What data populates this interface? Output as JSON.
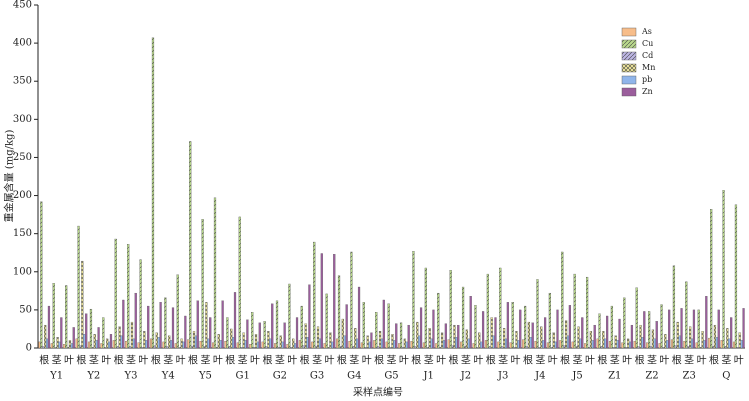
{
  "chart_data": {
    "type": "bar",
    "x_label": "采样点编号",
    "y_label": "重金属含量 (mg/kg)",
    "groups": [
      "Y1",
      "Y2",
      "Y3",
      "Y4",
      "Y5",
      "G1",
      "G2",
      "G3",
      "G4",
      "G5",
      "J1",
      "J2",
      "J3",
      "J4",
      "J5",
      "Z1",
      "Z2",
      "Z3",
      "Q"
    ],
    "categories": [
      "根",
      "茎",
      "叶",
      "根",
      "茎",
      "叶",
      "根",
      "茎",
      "叶",
      "根",
      "茎",
      "叶",
      "根",
      "茎",
      "叶",
      "根",
      "茎",
      "叶",
      "根",
      "茎",
      "叶",
      "根",
      "茎",
      "叶",
      "根",
      "茎",
      "叶",
      "根",
      "茎",
      "叶",
      "根",
      "茎",
      "叶",
      "根",
      "茎",
      "叶",
      "根",
      "茎",
      "叶",
      "根",
      "茎",
      "叶",
      "根",
      "茎",
      "叶",
      "根",
      "茎",
      "叶",
      "根",
      "茎",
      "叶",
      "根",
      "茎",
      "叶",
      "根",
      "茎",
      "叶"
    ],
    "ylim": [
      0,
      450
    ],
    "yticks": [
      0,
      50,
      100,
      150,
      200,
      250,
      300,
      350,
      400,
      450
    ],
    "legend_position": "upper right",
    "series": [
      {
        "name": "As",
        "color": "#f7bd8a",
        "pattern": "none",
        "values": [
          8,
          6,
          5,
          12,
          8,
          6,
          10,
          9,
          7,
          12,
          8,
          6,
          11,
          9,
          7,
          9,
          7,
          5,
          8,
          6,
          5,
          10,
          8,
          6,
          12,
          9,
          7,
          10,
          8,
          6,
          9,
          7,
          6,
          11,
          8,
          6,
          10,
          8,
          7,
          11,
          9,
          7,
          10,
          8,
          6,
          12,
          9,
          7,
          9,
          7,
          6,
          11,
          9,
          7,
          13,
          10,
          8
        ]
      },
      {
        "name": "Cu",
        "color": "#b9d98c",
        "pattern": "diagonal",
        "values": [
          192,
          85,
          82,
          160,
          51,
          40,
          143,
          136,
          116,
          407,
          66,
          96,
          271,
          169,
          197,
          40,
          172,
          47,
          35,
          62,
          84,
          55,
          139,
          71,
          95,
          126,
          60,
          47,
          58,
          33,
          127,
          105,
          72,
          102,
          80,
          56,
          97,
          105,
          60,
          55,
          90,
          72,
          126,
          97,
          93,
          45,
          55,
          66,
          79,
          48,
          57,
          108,
          87,
          50,
          182,
          207,
          188
        ]
      },
      {
        "name": "Cd",
        "color": "#bcb5e3",
        "pattern": "diagonal",
        "values": [
          2,
          1,
          1,
          3,
          1,
          1,
          2,
          2,
          1,
          3,
          2,
          1,
          2,
          2,
          1,
          2,
          1,
          1,
          2,
          1,
          1,
          3,
          2,
          1,
          2,
          2,
          1,
          2,
          1,
          1,
          2,
          1,
          1,
          3,
          2,
          1,
          2,
          2,
          1,
          2,
          1,
          1,
          3,
          2,
          1,
          2,
          1,
          1,
          2,
          2,
          1,
          3,
          2,
          1,
          2,
          2,
          1
        ]
      },
      {
        "name": "Mn",
        "color": "#f3ea9c",
        "pattern": "cross",
        "values": [
          30,
          14,
          10,
          114,
          18,
          12,
          28,
          34,
          22,
          20,
          16,
          12,
          22,
          60,
          18,
          25,
          20,
          18,
          22,
          16,
          12,
          32,
          28,
          20,
          38,
          26,
          16,
          22,
          18,
          12,
          34,
          26,
          20,
          30,
          24,
          20,
          40,
          26,
          22,
          34,
          28,
          20,
          36,
          28,
          22,
          22,
          16,
          12,
          30,
          24,
          18,
          34,
          28,
          22,
          30,
          26,
          20
        ]
      },
      {
        "name": "pb",
        "color": "#90b5ea",
        "pattern": "none",
        "values": [
          12,
          8,
          6,
          18,
          10,
          8,
          16,
          12,
          10,
          14,
          10,
          8,
          16,
          12,
          10,
          14,
          10,
          8,
          12,
          8,
          6,
          14,
          12,
          8,
          16,
          12,
          8,
          12,
          10,
          8,
          16,
          12,
          10,
          14,
          12,
          8,
          16,
          12,
          10,
          14,
          10,
          8,
          16,
          12,
          10,
          12,
          10,
          8,
          14,
          12,
          10,
          16,
          12,
          10,
          14,
          12,
          10
        ]
      },
      {
        "name": "Zn",
        "color": "#9b5e9c",
        "pattern": "none",
        "values": [
          55,
          40,
          27,
          45,
          27,
          18,
          63,
          72,
          55,
          60,
          53,
          42,
          62,
          40,
          62,
          73,
          37,
          33,
          58,
          33,
          40,
          83,
          124,
          123,
          57,
          80,
          20,
          63,
          32,
          30,
          53,
          50,
          32,
          30,
          68,
          48,
          40,
          60,
          50,
          33,
          40,
          50,
          56,
          40,
          30,
          42,
          38,
          30,
          48,
          35,
          50,
          52,
          50,
          68,
          50,
          40,
          52
        ]
      }
    ]
  }
}
